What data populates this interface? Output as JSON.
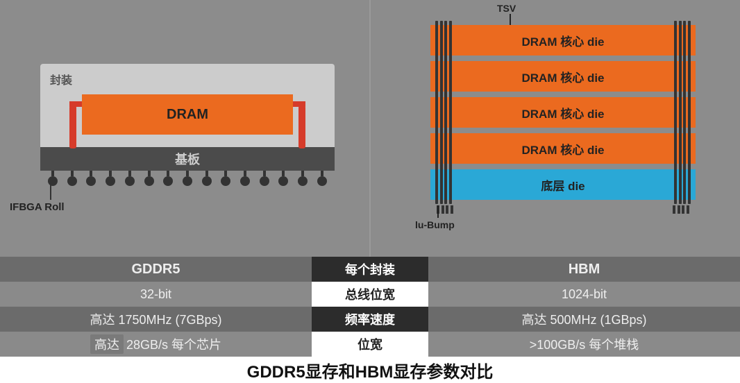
{
  "colors": {
    "panel_bg": "#8c8c8c",
    "pkg_bg": "#cccccc",
    "dram_orange": "#eb6a1f",
    "legs_red": "#d63b2a",
    "substrate": "#4b4b4b",
    "base_die_blue": "#2aa8d6",
    "pin_dark": "#333333",
    "row_dark": "#6b6b6b",
    "row_light": "#8a8a8a",
    "mid_dark": "#2c2c2c",
    "mid_light": "#ffffff"
  },
  "gddr5": {
    "package_label": "封装",
    "dram_label": "DRAM",
    "substrate_label": "基板",
    "ball_count": 15,
    "callout": "IFBGA Roll"
  },
  "hbm": {
    "tsv_label": "TSV",
    "dram_die_label": "DRAM 核心 die",
    "dram_die_count": 4,
    "base_die_label": "底层 die",
    "tsv_pins_per_group": 4,
    "ubump_label": "lu-Bump"
  },
  "table": {
    "header_mid": "每个封装",
    "header_left": "GDDR5",
    "header_right": "HBM",
    "rows": [
      {
        "mid": "总线位宽",
        "left": "32-bit",
        "right": "1024-bit"
      },
      {
        "mid": "频率速度",
        "left": "高达 1750MHz (7GBps)",
        "right": "高达 500MHz (1GBps)"
      },
      {
        "mid": "位宽",
        "left_prefix": "高达",
        "left": "28GB/s 每个芯片",
        "right": ">100GB/s 每个堆栈"
      }
    ]
  },
  "caption": "GDDR5显存和HBM显存参数对比"
}
